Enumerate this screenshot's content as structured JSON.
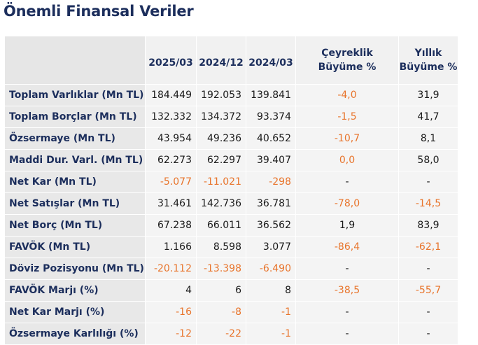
{
  "title": "Önemli Finansal Veriler",
  "headers": {
    "col1": "2025/03",
    "col2": "2024/12",
    "col3": "2024/03",
    "col4_line1": "Çeyreklik",
    "col4_line2": "Büyüme %",
    "col5_line1": "Yıllık",
    "col5_line2": "Büyüme %"
  },
  "colors": {
    "title": "#1c2e5c",
    "negative": "#e8742b",
    "label_bg": "#e8e8e8",
    "cell_bg": "#f4f4f4"
  },
  "rows": [
    {
      "label": "Toplam Varlıklar (Mn TL)",
      "v1": "184.449",
      "v2": "192.053",
      "v3": "139.841",
      "q": "-4,0",
      "y": "31,9",
      "n1": false,
      "n2": false,
      "n3": false,
      "nq": true,
      "ny": false
    },
    {
      "label": "Toplam Borçlar (Mn TL)",
      "v1": "132.332",
      "v2": "134.372",
      "v3": "93.374",
      "q": "-1,5",
      "y": "41,7",
      "n1": false,
      "n2": false,
      "n3": false,
      "nq": true,
      "ny": false
    },
    {
      "label": "Özsermaye (Mn TL)",
      "v1": "43.954",
      "v2": "49.236",
      "v3": "40.652",
      "q": "-10,7",
      "y": "8,1",
      "n1": false,
      "n2": false,
      "n3": false,
      "nq": true,
      "ny": false
    },
    {
      "label": "Maddi Dur. Varl. (Mn TL)",
      "v1": "62.273",
      "v2": "62.297",
      "v3": "39.407",
      "q": "0,0",
      "y": "58,0",
      "n1": false,
      "n2": false,
      "n3": false,
      "nq": true,
      "ny": false
    },
    {
      "label": "Net Kar (Mn TL)",
      "v1": "-5.077",
      "v2": "-11.021",
      "v3": "-298",
      "q": "-",
      "y": "-",
      "n1": true,
      "n2": true,
      "n3": true,
      "nq": false,
      "ny": false
    },
    {
      "label": "Net Satışlar (Mn TL)",
      "v1": "31.461",
      "v2": "142.736",
      "v3": "36.781",
      "q": "-78,0",
      "y": "-14,5",
      "n1": false,
      "n2": false,
      "n3": false,
      "nq": true,
      "ny": true
    },
    {
      "label": "Net Borç (Mn TL)",
      "v1": "67.238",
      "v2": "66.011",
      "v3": "36.562",
      "q": "1,9",
      "y": "83,9",
      "n1": false,
      "n2": false,
      "n3": false,
      "nq": false,
      "ny": false
    },
    {
      "label": "FAVÖK (Mn TL)",
      "v1": "1.166",
      "v2": "8.598",
      "v3": "3.077",
      "q": "-86,4",
      "y": "-62,1",
      "n1": false,
      "n2": false,
      "n3": false,
      "nq": true,
      "ny": true
    },
    {
      "label": "Döviz Pozisyonu (Mn TL)",
      "v1": "-20.112",
      "v2": "-13.398",
      "v3": "-6.490",
      "q": "-",
      "y": "-",
      "n1": true,
      "n2": true,
      "n3": true,
      "nq": false,
      "ny": false
    },
    {
      "label": "FAVÖK Marjı (%)",
      "v1": "4",
      "v2": "6",
      "v3": "8",
      "q": "-38,5",
      "y": "-55,7",
      "n1": false,
      "n2": false,
      "n3": false,
      "nq": true,
      "ny": true
    },
    {
      "label": "Net Kar Marjı (%)",
      "v1": "-16",
      "v2": "-8",
      "v3": "-1",
      "q": "-",
      "y": "-",
      "n1": true,
      "n2": true,
      "n3": true,
      "nq": false,
      "ny": false
    },
    {
      "label": "Özsermaye Karlılığı (%)",
      "v1": "-12",
      "v2": "-22",
      "v3": "-1",
      "q": "-",
      "y": "-",
      "n1": true,
      "n2": true,
      "n3": true,
      "nq": false,
      "ny": false
    }
  ]
}
